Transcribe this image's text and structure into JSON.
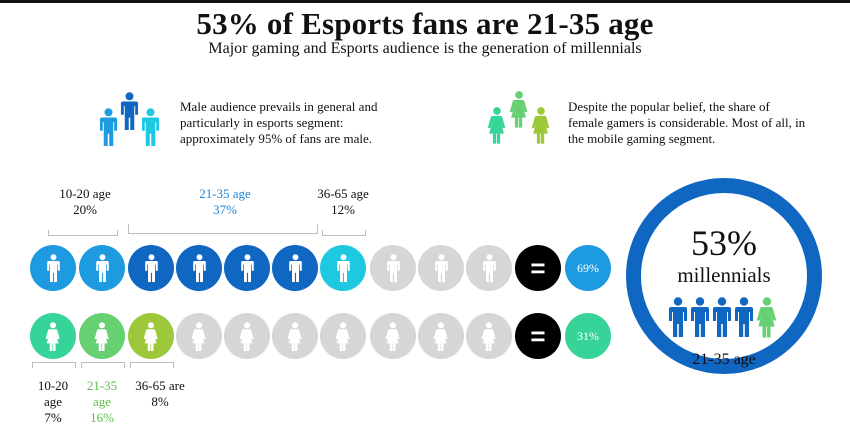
{
  "header": {
    "title": "53% of Esports fans are 21-35 age",
    "subtitle": "Major gaming and Esports audience is the generation of millennials"
  },
  "notes": {
    "male": "Male audience prevails in general and particularly in esports segment: approximately 95% of fans are male.",
    "female": "Despite the popular belief, the share of female gamers is considerable. Most of all, in the mobile gaming segment."
  },
  "male_row": {
    "segments": [
      {
        "age": "10-20 age",
        "pct": "20%"
      },
      {
        "age": "21-35 age",
        "pct": "37%"
      },
      {
        "age": "36-65 age",
        "pct": "12%"
      }
    ],
    "total": "69%"
  },
  "female_row": {
    "segments": [
      {
        "age": "10-20 age",
        "pct": "7%"
      },
      {
        "age": "21-35 age",
        "pct": "16%"
      },
      {
        "age": "36-65 are",
        "pct": "8%"
      }
    ],
    "total": "31%"
  },
  "equals_symbol": "=",
  "summary": {
    "percent": "53%",
    "word": "millennials",
    "age": "21-35 age"
  },
  "colors": {
    "male_light": "#1e9be0",
    "male_dark": "#0f67c1",
    "male_cyan": "#1ec8e0",
    "female_mint": "#37d49a",
    "female_green": "#67d072",
    "female_olive": "#9cc83a",
    "neutral": "#d6d6d6",
    "ring": "#0f67c1",
    "highlight_blue_text": "#1e86d8",
    "highlight_green_text": "#5bbf4a"
  },
  "icons": [
    "male-person-icon",
    "female-person-icon",
    "equals-icon"
  ]
}
